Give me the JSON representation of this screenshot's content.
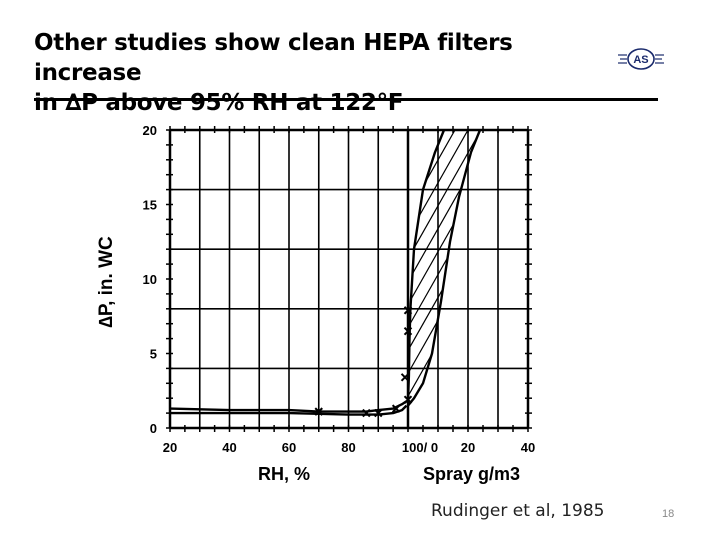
{
  "slide": {
    "title_line1": "Other studies show clean HEPA filters increase",
    "title_line2": "in ∆P above 95% RH at 122°F",
    "logo_text": "AS",
    "citation": "Rudinger et al, 1985",
    "page_number": "18"
  },
  "chart_data": {
    "type": "line",
    "ylabel": "∆P, in. WC",
    "xlabel_left": "RH, %",
    "xlabel_right": "Spray g/m3",
    "ylim": [
      0,
      20
    ],
    "yticks": [
      "0",
      "5",
      "10",
      "15",
      "20"
    ],
    "xticks_rh": [
      "20",
      "40",
      "60",
      "80",
      "100/ 0"
    ],
    "xticks_spray": [
      "20",
      "40"
    ],
    "series": [
      {
        "name": "RH upper curve",
        "x_axis": "RH",
        "points": [
          [
            20,
            1.3
          ],
          [
            40,
            1.2
          ],
          [
            60,
            1.2
          ],
          [
            70,
            1.1
          ],
          [
            80,
            1.1
          ],
          [
            86,
            1.1
          ],
          [
            90,
            1.2
          ],
          [
            95,
            1.3
          ],
          [
            98,
            1.6
          ],
          [
            99.5,
            1.8
          ]
        ]
      },
      {
        "name": "RH lower curve",
        "x_axis": "RH",
        "points": [
          [
            20,
            1.0
          ],
          [
            40,
            1.0
          ],
          [
            60,
            1.0
          ],
          [
            80,
            0.9
          ],
          [
            90,
            0.9
          ],
          [
            95,
            1.0
          ],
          [
            98,
            1.2
          ],
          [
            99.5,
            1.5
          ]
        ]
      },
      {
        "name": "Spray left boundary",
        "x_axis": "Spray",
        "points": [
          [
            0,
            1.8
          ],
          [
            0.3,
            3.5
          ],
          [
            0.5,
            6.0
          ],
          [
            0.8,
            8.0
          ],
          [
            2,
            12.0
          ],
          [
            5,
            16.0
          ],
          [
            9,
            18.5
          ],
          [
            12,
            20.0
          ]
        ]
      },
      {
        "name": "Spray right boundary",
        "x_axis": "Spray",
        "points": [
          [
            0,
            1.5
          ],
          [
            2,
            2.0
          ],
          [
            5,
            3.0
          ],
          [
            8,
            5.0
          ],
          [
            11,
            8.5
          ],
          [
            14,
            12.5
          ],
          [
            17,
            15.5
          ],
          [
            21,
            18.5
          ],
          [
            24,
            20.0
          ]
        ]
      }
    ],
    "markers": [
      {
        "x_axis": "RH",
        "x": 70,
        "y": 1.1
      },
      {
        "x_axis": "RH",
        "x": 86,
        "y": 1.0
      },
      {
        "x_axis": "RH",
        "x": 90,
        "y": 1.0
      },
      {
        "x_axis": "RH",
        "x": 96,
        "y": 1.3
      },
      {
        "x_axis": "RH",
        "x": 99,
        "y": 3.4
      },
      {
        "x_axis": "Spray",
        "x": 0,
        "y": 1.9
      },
      {
        "x_axis": "Spray",
        "x": 0,
        "y": 6.5
      },
      {
        "x_axis": "Spray",
        "x": 0,
        "y": 7.9
      }
    ]
  }
}
